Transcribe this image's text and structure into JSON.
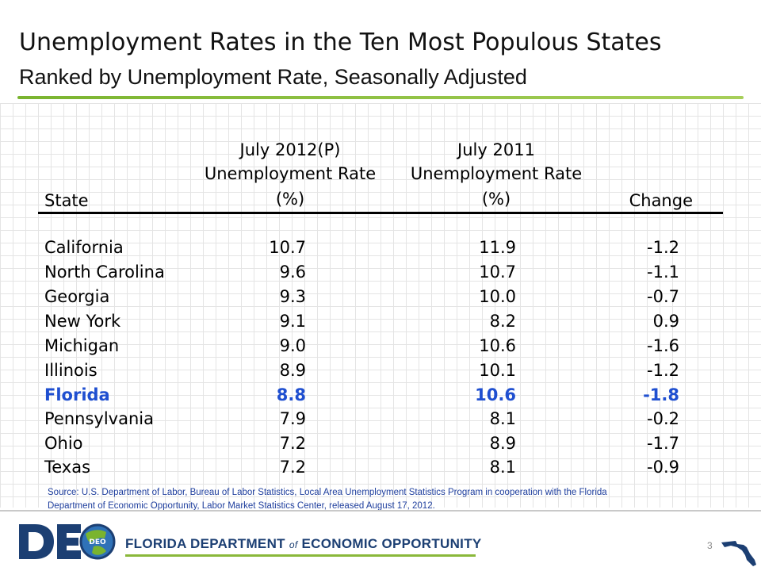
{
  "title": "Unemployment Rates in the Ten Most Populous States",
  "subtitle": "Ranked by Unemployment Rate, Seasonally Adjusted",
  "table": {
    "headers": {
      "state": "State",
      "col1_line1": "July 2012(P)",
      "col1_line2": "Unemployment Rate",
      "col1_line3": "(%)",
      "col2_line1": "July 2011",
      "col2_line2": "Unemployment Rate",
      "col2_line3": "(%)",
      "change": "Change"
    },
    "rows": [
      {
        "state": "California",
        "july2012": "10.7",
        "july2011": "11.9",
        "change": "-1.2",
        "highlight": false
      },
      {
        "state": "North Carolina",
        "july2012": "9.6",
        "july2011": "10.7",
        "change": "-1.1",
        "highlight": false
      },
      {
        "state": "Georgia",
        "july2012": "9.3",
        "july2011": "10.0",
        "change": "-0.7",
        "highlight": false
      },
      {
        "state": "New York",
        "july2012": "9.1",
        "july2011": "8.2",
        "change": "0.9",
        "highlight": false
      },
      {
        "state": "Michigan",
        "july2012": "9.0",
        "july2011": "10.6",
        "change": "-1.6",
        "highlight": false
      },
      {
        "state": "Illinois",
        "july2012": "8.9",
        "july2011": "10.1",
        "change": "-1.2",
        "highlight": false
      },
      {
        "state": "Florida",
        "july2012": "8.8",
        "july2011": "10.6",
        "change": "-1.8",
        "highlight": true
      },
      {
        "state": "Pennsylvania",
        "july2012": "7.9",
        "july2011": "8.1",
        "change": "-0.2",
        "highlight": false
      },
      {
        "state": "Ohio",
        "july2012": "7.2",
        "july2011": "8.9",
        "change": "-1.7",
        "highlight": false
      },
      {
        "state": "Texas",
        "july2012": "7.2",
        "july2011": "8.1",
        "change": "-0.9",
        "highlight": false
      }
    ]
  },
  "source": {
    "line1": "Source:  U.S. Department of Labor, Bureau of Labor Statistics, Local Area Unemployment Statistics Program in cooperation with the Florida",
    "line2": "Department of Economic Opportunity, Labor Market Statistics Center, released August 17, 2012."
  },
  "footer": {
    "logo_text": "DEO",
    "agency_part1": "FLORIDA DEPARTMENT",
    "agency_of": "of",
    "agency_part2": "ECONOMIC OPPORTUNITY",
    "page_number": "3"
  },
  "colors": {
    "highlight": "#1f4fd0",
    "accent_green": "#7ab42f",
    "brand_navy": "#1c3f73",
    "source_text": "#1f3f9e"
  }
}
